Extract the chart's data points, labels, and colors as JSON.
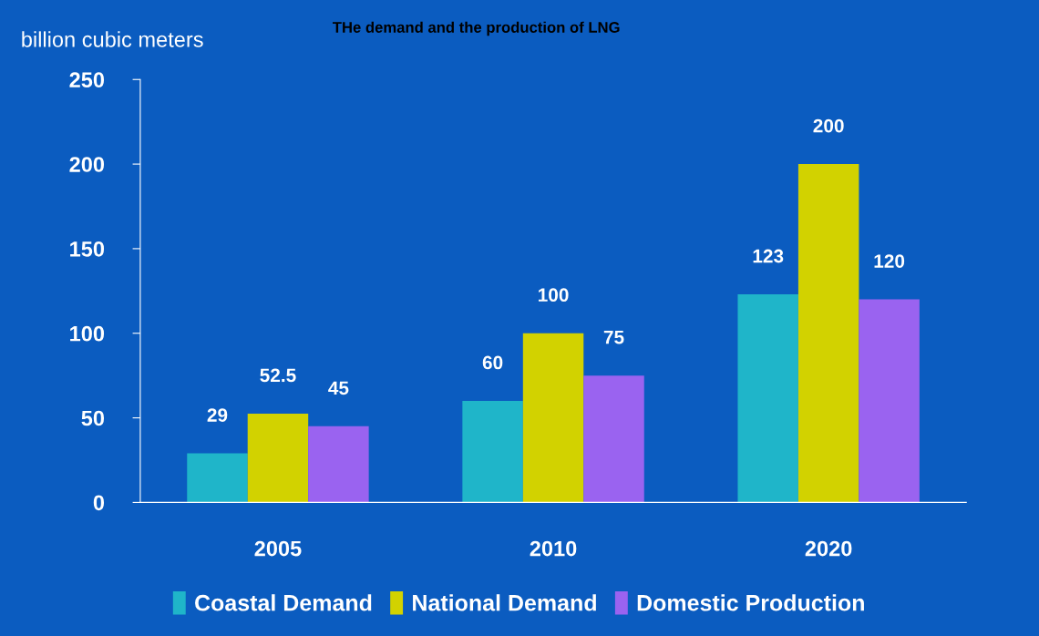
{
  "chart_data": {
    "type": "bar",
    "title": "THe demand and the production of LNG",
    "ylabel": "billion cubic meters",
    "categories": [
      "2005",
      "2010",
      "2020"
    ],
    "series": [
      {
        "name": "Coastal Demand",
        "color": "#1fb5c9",
        "values": [
          29,
          60,
          123
        ]
      },
      {
        "name": "National Demand",
        "color": "#d2d200",
        "values": [
          52.5,
          100,
          200
        ]
      },
      {
        "name": "Domestic Production",
        "color": "#9a63f0",
        "values": [
          45,
          75,
          120
        ]
      }
    ],
    "ylim": [
      0,
      250
    ],
    "yticks": [
      0,
      50,
      100,
      150,
      200,
      250
    ],
    "grid": false,
    "legend": "bottom",
    "data_labels": true
  }
}
